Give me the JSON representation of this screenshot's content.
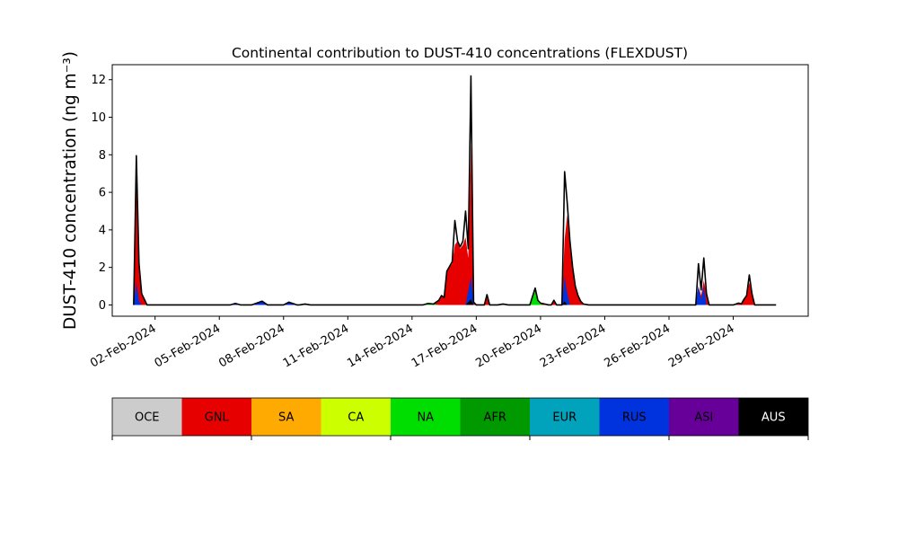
{
  "chart_data": {
    "type": "area",
    "title": "Continental contribution to DUST-410 concentrations (FLEXDUST)",
    "ylabel": "DUST-410 concentration (ng m⁻³)",
    "xlabel": "",
    "x_start": "2024-02-01",
    "x_end": "2024-03-02",
    "xlim": [
      "2024-01-31T00:00",
      "2024-03-03T12:00"
    ],
    "ylim": [
      -0.6,
      12.8
    ],
    "yticks": [
      0,
      2,
      4,
      6,
      8,
      10,
      12
    ],
    "xticks": [
      "02-Feb-2024",
      "05-Feb-2024",
      "08-Feb-2024",
      "11-Feb-2024",
      "14-Feb-2024",
      "17-Feb-2024",
      "20-Feb-2024",
      "23-Feb-2024",
      "26-Feb-2024",
      "29-Feb-2024"
    ],
    "xtick_dates": [
      "2024-02-02",
      "2024-02-05",
      "2024-02-08",
      "2024-02-11",
      "2024-02-14",
      "2024-02-17",
      "2024-02-20",
      "2024-02-23",
      "2024-02-26",
      "2024-02-29"
    ],
    "legend": {
      "placement": "bottom",
      "entries": [
        {
          "label": "OCE",
          "color": "#cccccc",
          "text_color": "#000000"
        },
        {
          "label": "GNL",
          "color": "#e60000",
          "text_color": "#000000"
        },
        {
          "label": "SA",
          "color": "#ffaa00",
          "text_color": "#000000"
        },
        {
          "label": "CA",
          "color": "#ccff00",
          "text_color": "#000000"
        },
        {
          "label": "NA",
          "color": "#00dd00",
          "text_color": "#000000"
        },
        {
          "label": "AFR",
          "color": "#009900",
          "text_color": "#000000"
        },
        {
          "label": "EUR",
          "color": "#00a3bb",
          "text_color": "#000000"
        },
        {
          "label": "RUS",
          "color": "#0033dd",
          "text_color": "#000000"
        },
        {
          "label": "ASI",
          "color": "#660099",
          "text_color": "#000000"
        },
        {
          "label": "AUS",
          "color": "#000000",
          "text_color": "#ffffff"
        }
      ]
    },
    "series": [
      {
        "name": "GNL",
        "color": "#e60000",
        "points": [
          [
            "2024-02-01T00:00",
            0
          ],
          [
            "2024-02-01T03:00",
            6.5
          ],
          [
            "2024-02-01T06:00",
            2.0
          ],
          [
            "2024-02-01T09:00",
            0.6
          ],
          [
            "2024-02-01T15:00",
            0
          ],
          [
            "2024-02-15T00:00",
            0
          ],
          [
            "2024-02-15T06:00",
            0.25
          ],
          [
            "2024-02-15T09:00",
            0.5
          ],
          [
            "2024-02-15T12:00",
            0.4
          ],
          [
            "2024-02-15T15:00",
            1.8
          ],
          [
            "2024-02-15T21:00",
            2.2
          ],
          [
            "2024-02-16T00:00",
            3.2
          ],
          [
            "2024-02-16T03:00",
            3.4
          ],
          [
            "2024-02-16T06:00",
            3.0
          ],
          [
            "2024-02-16T09:00",
            3.2
          ],
          [
            "2024-02-16T12:00",
            3.6
          ],
          [
            "2024-02-16T15:00",
            2.5
          ],
          [
            "2024-02-16T18:00",
            8.5
          ],
          [
            "2024-02-16T21:00",
            0.15
          ],
          [
            "2024-02-17T00:00",
            0
          ],
          [
            "2024-02-17T09:00",
            0
          ],
          [
            "2024-02-17T12:00",
            0.4
          ],
          [
            "2024-02-17T15:00",
            0
          ],
          [
            "2024-02-18T00:00",
            0
          ],
          [
            "2024-02-18T06:00",
            0.05
          ],
          [
            "2024-02-18T12:00",
            0
          ],
          [
            "2024-02-19T18:00",
            0
          ],
          [
            "2024-02-20T00:00",
            0.1
          ],
          [
            "2024-02-20T09:00",
            0
          ],
          [
            "2024-02-20T12:00",
            0
          ],
          [
            "2024-02-20T15:00",
            0.2
          ],
          [
            "2024-02-20T18:00",
            0
          ],
          [
            "2024-02-21T00:00",
            0
          ],
          [
            "2024-02-21T03:00",
            3.5
          ],
          [
            "2024-02-21T06:00",
            4.8
          ],
          [
            "2024-02-21T09:00",
            3.4
          ],
          [
            "2024-02-21T12:00",
            2.0
          ],
          [
            "2024-02-21T15:00",
            1.0
          ],
          [
            "2024-02-21T18:00",
            0.5
          ],
          [
            "2024-02-21T21:00",
            0.2
          ],
          [
            "2024-02-22T00:00",
            0.05
          ],
          [
            "2024-02-22T06:00",
            0
          ],
          [
            "2024-02-27T06:00",
            0
          ],
          [
            "2024-02-27T09:00",
            1.0
          ],
          [
            "2024-02-27T12:00",
            0.5
          ],
          [
            "2024-02-27T15:00",
            1.3
          ],
          [
            "2024-02-27T18:00",
            0.6
          ],
          [
            "2024-02-27T21:00",
            0
          ],
          [
            "2024-02-29T00:00",
            0
          ],
          [
            "2024-02-29T06:00",
            0.1
          ],
          [
            "2024-02-29T09:00",
            0.05
          ],
          [
            "2024-02-29T12:00",
            0.3
          ],
          [
            "2024-02-29T15:00",
            0.5
          ],
          [
            "2024-02-29T18:00",
            1.2
          ],
          [
            "2024-02-29T21:00",
            0.6
          ],
          [
            "2024-03-01T00:00",
            0
          ]
        ]
      },
      {
        "name": "NA",
        "color": "#00dd00",
        "points": [
          [
            "2024-02-14T12:00",
            0
          ],
          [
            "2024-02-14T18:00",
            0.08
          ],
          [
            "2024-02-15T00:00",
            0.05
          ],
          [
            "2024-02-15T06:00",
            0
          ],
          [
            "2024-02-19T12:00",
            0
          ],
          [
            "2024-02-19T18:00",
            0.8
          ],
          [
            "2024-02-19T21:00",
            0.2
          ],
          [
            "2024-02-20T00:00",
            0.05
          ],
          [
            "2024-02-20T03:00",
            0
          ]
        ]
      },
      {
        "name": "RUS",
        "color": "#0033dd",
        "points": [
          [
            "2024-02-01T00:00",
            0
          ],
          [
            "2024-02-01T03:00",
            1.2
          ],
          [
            "2024-02-01T06:00",
            0.2
          ],
          [
            "2024-02-01T09:00",
            0
          ],
          [
            "2024-02-05T12:00",
            0
          ],
          [
            "2024-02-05T18:00",
            0.08
          ],
          [
            "2024-02-06T00:00",
            0
          ],
          [
            "2024-02-06T12:00",
            0
          ],
          [
            "2024-02-07T00:00",
            0.2
          ],
          [
            "2024-02-07T06:00",
            0
          ],
          [
            "2024-02-08T00:00",
            0
          ],
          [
            "2024-02-08T06:00",
            0.15
          ],
          [
            "2024-02-08T12:00",
            0.05
          ],
          [
            "2024-02-08T15:00",
            0
          ],
          [
            "2024-02-08T18:00",
            0
          ],
          [
            "2024-02-09T00:00",
            0.05
          ],
          [
            "2024-02-09T06:00",
            0
          ],
          [
            "2024-02-16T12:00",
            0
          ],
          [
            "2024-02-16T18:00",
            1.5
          ],
          [
            "2024-02-16T21:00",
            0
          ],
          [
            "2024-02-21T00:00",
            0
          ],
          [
            "2024-02-21T03:00",
            1.5
          ],
          [
            "2024-02-21T06:00",
            0.6
          ],
          [
            "2024-02-21T09:00",
            0
          ],
          [
            "2024-02-27T06:00",
            0
          ],
          [
            "2024-02-27T09:00",
            1.0
          ],
          [
            "2024-02-27T12:00",
            0.3
          ],
          [
            "2024-02-27T15:00",
            1.0
          ],
          [
            "2024-02-27T18:00",
            0
          ]
        ]
      },
      {
        "name": "AUS",
        "color": "#000000",
        "points": [
          [
            "2024-02-16T12:00",
            0
          ],
          [
            "2024-02-16T18:00",
            0.3
          ],
          [
            "2024-02-16T21:00",
            0
          ],
          [
            "2024-02-21T00:00",
            0
          ],
          [
            "2024-02-21T03:00",
            0.2
          ],
          [
            "2024-02-21T06:00",
            0
          ]
        ]
      }
    ],
    "total": [
      [
        "2024-02-01T00:00",
        0
      ],
      [
        "2024-02-01T03:00",
        7.95
      ],
      [
        "2024-02-01T06:00",
        2.2
      ],
      [
        "2024-02-01T09:00",
        0.6
      ],
      [
        "2024-02-01T15:00",
        0
      ],
      [
        "2024-02-05T12:00",
        0
      ],
      [
        "2024-02-05T18:00",
        0.08
      ],
      [
        "2024-02-06T00:00",
        0
      ],
      [
        "2024-02-06T12:00",
        0
      ],
      [
        "2024-02-07T00:00",
        0.2
      ],
      [
        "2024-02-07T06:00",
        0
      ],
      [
        "2024-02-08T00:00",
        0
      ],
      [
        "2024-02-08T06:00",
        0.15
      ],
      [
        "2024-02-08T12:00",
        0.05
      ],
      [
        "2024-02-08T15:00",
        0
      ],
      [
        "2024-02-08T18:00",
        0
      ],
      [
        "2024-02-09T00:00",
        0.05
      ],
      [
        "2024-02-09T06:00",
        0
      ],
      [
        "2024-02-14T12:00",
        0
      ],
      [
        "2024-02-14T18:00",
        0.08
      ],
      [
        "2024-02-15T00:00",
        0.05
      ],
      [
        "2024-02-15T06:00",
        0.25
      ],
      [
        "2024-02-15T09:00",
        0.5
      ],
      [
        "2024-02-15T12:00",
        0.4
      ],
      [
        "2024-02-15T15:00",
        1.8
      ],
      [
        "2024-02-15T21:00",
        2.3
      ],
      [
        "2024-02-16T00:00",
        4.5
      ],
      [
        "2024-02-16T03:00",
        3.4
      ],
      [
        "2024-02-16T06:00",
        3.1
      ],
      [
        "2024-02-16T09:00",
        3.4
      ],
      [
        "2024-02-16T12:00",
        5.0
      ],
      [
        "2024-02-16T15:00",
        3.0
      ],
      [
        "2024-02-16T18:00",
        12.2
      ],
      [
        "2024-02-16T21:00",
        0.15
      ],
      [
        "2024-02-17T00:00",
        0
      ],
      [
        "2024-02-17T09:00",
        0
      ],
      [
        "2024-02-17T12:00",
        0.55
      ],
      [
        "2024-02-17T15:00",
        0
      ],
      [
        "2024-02-18T00:00",
        0
      ],
      [
        "2024-02-18T06:00",
        0.05
      ],
      [
        "2024-02-18T12:00",
        0
      ],
      [
        "2024-02-19T12:00",
        0
      ],
      [
        "2024-02-19T18:00",
        0.9
      ],
      [
        "2024-02-19T21:00",
        0.25
      ],
      [
        "2024-02-20T00:00",
        0.1
      ],
      [
        "2024-02-20T09:00",
        0
      ],
      [
        "2024-02-20T12:00",
        0
      ],
      [
        "2024-02-20T15:00",
        0.25
      ],
      [
        "2024-02-20T18:00",
        0
      ],
      [
        "2024-02-21T00:00",
        0
      ],
      [
        "2024-02-21T03:00",
        7.1
      ],
      [
        "2024-02-21T06:00",
        5.4
      ],
      [
        "2024-02-21T09:00",
        3.4
      ],
      [
        "2024-02-21T12:00",
        2.0
      ],
      [
        "2024-02-21T15:00",
        1.0
      ],
      [
        "2024-02-21T18:00",
        0.5
      ],
      [
        "2024-02-21T21:00",
        0.2
      ],
      [
        "2024-02-22T00:00",
        0.05
      ],
      [
        "2024-02-22T06:00",
        0
      ],
      [
        "2024-02-27T06:00",
        0
      ],
      [
        "2024-02-27T09:00",
        2.2
      ],
      [
        "2024-02-27T12:00",
        0.8
      ],
      [
        "2024-02-27T15:00",
        2.5
      ],
      [
        "2024-02-27T18:00",
        0.6
      ],
      [
        "2024-02-27T21:00",
        0
      ],
      [
        "2024-02-29T00:00",
        0
      ],
      [
        "2024-02-29T06:00",
        0.1
      ],
      [
        "2024-02-29T09:00",
        0.05
      ],
      [
        "2024-02-29T12:00",
        0.3
      ],
      [
        "2024-02-29T15:00",
        0.5
      ],
      [
        "2024-02-29T18:00",
        1.6
      ],
      [
        "2024-02-29T21:00",
        0.6
      ],
      [
        "2024-03-01T00:00",
        0
      ]
    ]
  }
}
